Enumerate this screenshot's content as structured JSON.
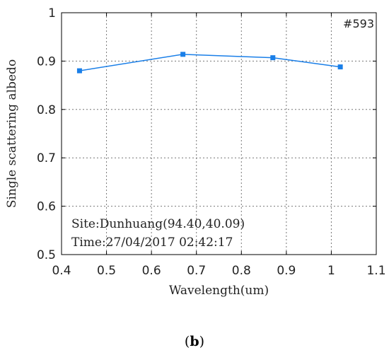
{
  "chart_data": {
    "type": "line",
    "x": [
      0.44,
      0.67,
      0.87,
      1.02
    ],
    "series": [
      {
        "values": [
          0.88,
          0.914,
          0.907,
          0.888
        ],
        "color": "#1a7fe8"
      }
    ],
    "xlabel": "Wavelength(um)",
    "ylabel": "Single scattering albedo",
    "xlim": [
      0.4,
      1.1
    ],
    "ylim": [
      0.5,
      1.0
    ],
    "xticks": [
      "0.4",
      "0.5",
      "0.6",
      "0.7",
      "0.8",
      "0.9",
      "1",
      "1.1"
    ],
    "yticks": [
      "0.5",
      "0.6",
      "0.7",
      "0.8",
      "0.9",
      "1"
    ],
    "grid": true,
    "id_label": "#593",
    "annotations": [
      "Site:Dunhuang(94.40,40.09)",
      "Time:27/04/2017 02:42:17"
    ]
  },
  "figure": {
    "panel_open": "(",
    "panel_letter": "b",
    "panel_close": ")"
  }
}
